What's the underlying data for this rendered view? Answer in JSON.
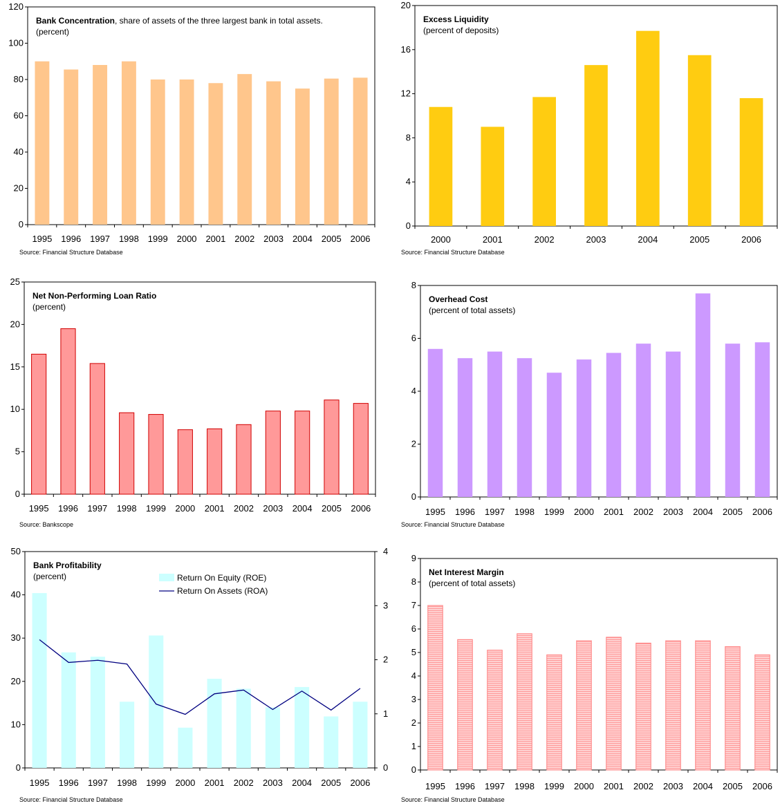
{
  "charts": [
    {
      "id": "bank-concentration",
      "title": "Bank Concentration",
      "title_rest": ", share of assets of the three largest bank in total assets.",
      "subtitle": "(percent)",
      "source": "Source: Financial Structure Database",
      "fill": "#FFC68C",
      "stroke": "#FFC68C"
    },
    {
      "id": "excess-liquidity",
      "title": "Excess Liquidity",
      "subtitle": "(percent of deposits)",
      "source": "Source: Financial Structure Database",
      "fill": "#FFCC11",
      "stroke": "#FFCC11"
    },
    {
      "id": "npl-ratio",
      "title": "Net Non-Performing Loan Ratio",
      "subtitle": "(percent)",
      "source": "Source: Bankscope",
      "fill": "#FF9999",
      "stroke": "#D00000"
    },
    {
      "id": "overhead-cost",
      "title": "Overhead Cost",
      "subtitle": "(percent of total assets)",
      "source": "Source: Financial Structure Database",
      "fill": "#CC99FF",
      "stroke": "#CC99FF"
    },
    {
      "id": "bank-profitability",
      "title": "Bank Profitability",
      "subtitle": "(percent)",
      "source": "Source: Financial Structure Database",
      "fill": "#CCFFFF",
      "line_color": "#000080",
      "legend": [
        "Return On Equity (ROE)",
        "Return On Assets (ROA)"
      ]
    },
    {
      "id": "net-interest-margin",
      "title": "Net Interest Margin",
      "subtitle": "(percent of total assets)",
      "source": "Source: Financial Structure Database",
      "fill": "#FFB3B3",
      "stroke": "#FF8080"
    }
  ],
  "chart_data": [
    {
      "type": "bar",
      "categories": [
        "1995",
        "1996",
        "1997",
        "1998",
        "1999",
        "2000",
        "2001",
        "2002",
        "2003",
        "2004",
        "2005",
        "2006"
      ],
      "values": [
        90,
        85.5,
        88,
        90,
        80,
        80,
        78,
        83,
        79,
        75,
        80.5,
        81
      ],
      "ylim": [
        0,
        120
      ],
      "yticks": [
        0,
        20,
        40,
        60,
        80,
        100,
        120
      ]
    },
    {
      "type": "bar",
      "categories": [
        "2000",
        "2001",
        "2002",
        "2003",
        "2004",
        "2005",
        "2006"
      ],
      "values": [
        10.8,
        9.0,
        11.7,
        14.6,
        17.7,
        15.5,
        11.6
      ],
      "ylim": [
        0,
        20
      ],
      "yticks": [
        0,
        4,
        8,
        12,
        16,
        20
      ]
    },
    {
      "type": "bar",
      "categories": [
        "1995",
        "1996",
        "1997",
        "1998",
        "1999",
        "2000",
        "2001",
        "2002",
        "2003",
        "2004",
        "2005",
        "2006"
      ],
      "values": [
        16.5,
        19.5,
        15.4,
        9.6,
        9.4,
        7.6,
        7.7,
        8.2,
        9.8,
        9.8,
        11.1,
        10.7
      ],
      "ylim": [
        0,
        25
      ],
      "yticks": [
        0,
        5,
        10,
        15,
        20,
        25
      ]
    },
    {
      "type": "bar",
      "categories": [
        "1995",
        "1996",
        "1997",
        "1998",
        "1999",
        "2000",
        "2001",
        "2002",
        "2003",
        "2004",
        "2005",
        "2006"
      ],
      "values": [
        5.6,
        5.25,
        5.5,
        5.25,
        4.7,
        5.2,
        5.45,
        5.8,
        5.5,
        7.7,
        5.8,
        5.85
      ],
      "ylim": [
        0,
        8
      ],
      "yticks": [
        0,
        2,
        4,
        6,
        8
      ]
    },
    {
      "type": "bar+line",
      "categories": [
        "1995",
        "1996",
        "1997",
        "1998",
        "1999",
        "2000",
        "2001",
        "2002",
        "2003",
        "2004",
        "2005",
        "2006"
      ],
      "series": [
        {
          "name": "Return On Equity (ROE)",
          "type": "bar",
          "axis": "left",
          "values": [
            40.4,
            26.7,
            25.7,
            15.3,
            30.6,
            9.3,
            20.6,
            18.3,
            14.0,
            18.7,
            11.9,
            15.3
          ]
        },
        {
          "name": "Return On Assets (ROA)",
          "type": "line",
          "axis": "right",
          "values": [
            2.37,
            1.95,
            1.99,
            1.92,
            1.18,
            0.99,
            1.37,
            1.44,
            1.08,
            1.42,
            1.07,
            1.47
          ]
        }
      ],
      "ylim": [
        0,
        50
      ],
      "yticks": [
        0,
        10,
        20,
        30,
        40,
        50
      ],
      "y2lim": [
        0,
        4
      ],
      "y2ticks": [
        0,
        1,
        2,
        3,
        4
      ]
    },
    {
      "type": "bar",
      "categories": [
        "1995",
        "1996",
        "1997",
        "1998",
        "1999",
        "2000",
        "2001",
        "2002",
        "2003",
        "2004",
        "2005",
        "2006"
      ],
      "values": [
        7.0,
        5.55,
        5.1,
        5.8,
        4.9,
        5.5,
        5.65,
        5.4,
        5.5,
        5.5,
        5.25,
        4.9
      ],
      "ylim": [
        0,
        9
      ],
      "yticks": [
        0,
        1,
        2,
        3,
        4,
        5,
        6,
        7,
        8,
        9
      ]
    }
  ]
}
